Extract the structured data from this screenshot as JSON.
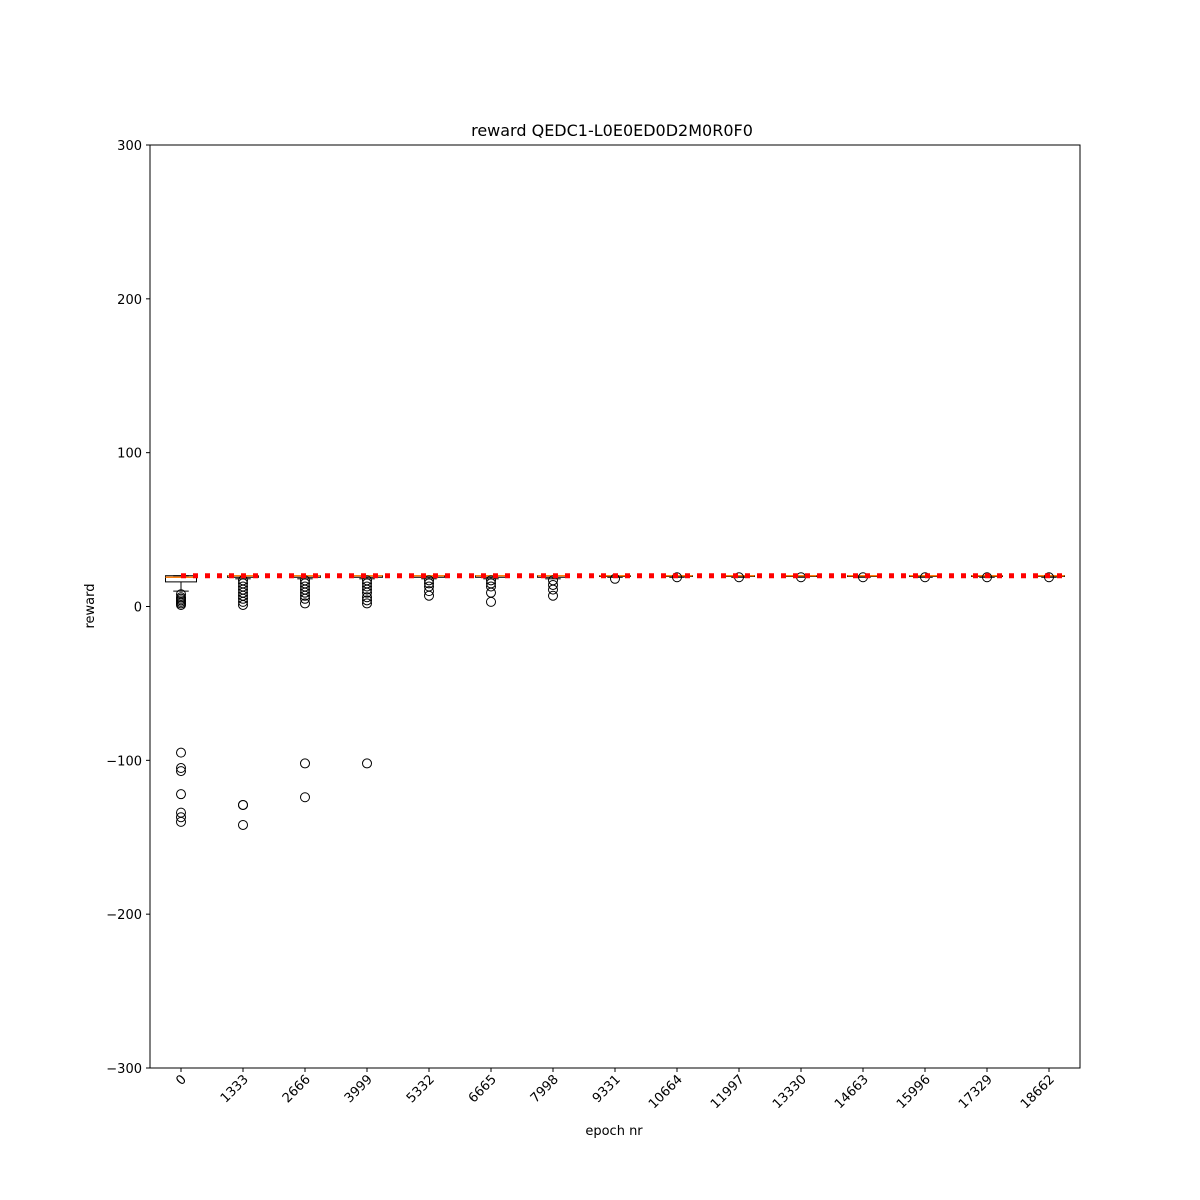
{
  "chart_data": {
    "type": "box",
    "title": "reward QEDC1-L0E0ED0D2M0R0F0",
    "xlabel": "epoch nr",
    "ylabel": "reward",
    "categories": [
      "0",
      "1333",
      "2666",
      "3999",
      "5332",
      "6665",
      "7998",
      "9331",
      "10664",
      "11997",
      "13330",
      "14663",
      "15996",
      "17329",
      "18662"
    ],
    "box_color": "#000000",
    "median_color": "#ff7f0e",
    "boxes": [
      {
        "whislo": 10,
        "q1": 16,
        "med": 19,
        "q3": 20,
        "whishi": 20,
        "fliers": [
          8,
          6,
          5,
          4,
          3,
          2,
          1,
          -95,
          -105,
          -107,
          -122,
          -134,
          -137,
          -140
        ]
      },
      {
        "whislo": 18,
        "q1": 19,
        "med": 20,
        "q3": 20,
        "whishi": 20,
        "fliers": [
          17,
          15,
          13,
          11,
          9,
          7,
          5,
          3,
          1,
          -129,
          -129,
          -142
        ]
      },
      {
        "whislo": 18,
        "q1": 19,
        "med": 20,
        "q3": 20,
        "whishi": 20,
        "fliers": [
          17,
          15,
          13,
          11,
          9,
          7,
          5,
          2,
          -102,
          -124
        ]
      },
      {
        "whislo": 18,
        "q1": 19,
        "med": 20,
        "q3": 20,
        "whishi": 20,
        "fliers": [
          17,
          15,
          13,
          11,
          9,
          6,
          4,
          2,
          -102
        ]
      },
      {
        "whislo": 18,
        "q1": 19,
        "med": 20,
        "q3": 20,
        "whishi": 20,
        "fliers": [
          17,
          15,
          13,
          10,
          7
        ]
      },
      {
        "whislo": 18,
        "q1": 19,
        "med": 20,
        "q3": 20,
        "whishi": 20,
        "fliers": [
          17,
          15,
          13,
          9,
          3
        ]
      },
      {
        "whislo": 18,
        "q1": 19,
        "med": 20,
        "q3": 20,
        "whishi": 20,
        "fliers": [
          17,
          14,
          11,
          7
        ]
      },
      {
        "whislo": 19,
        "q1": 19.5,
        "med": 20,
        "q3": 20,
        "whishi": 20,
        "fliers": [
          18
        ]
      },
      {
        "whislo": 19,
        "q1": 19.5,
        "med": 20,
        "q3": 20,
        "whishi": 20,
        "fliers": [
          19
        ]
      },
      {
        "whislo": 19,
        "q1": 19.5,
        "med": 20,
        "q3": 20,
        "whishi": 20,
        "fliers": [
          19
        ]
      },
      {
        "whislo": 19,
        "q1": 19.5,
        "med": 20,
        "q3": 20,
        "whishi": 20,
        "fliers": [
          19
        ]
      },
      {
        "whislo": 19,
        "q1": 19.5,
        "med": 20,
        "q3": 20,
        "whishi": 20,
        "fliers": [
          19
        ]
      },
      {
        "whislo": 19,
        "q1": 19.5,
        "med": 20,
        "q3": 20,
        "whishi": 20,
        "fliers": [
          19
        ]
      },
      {
        "whislo": 19,
        "q1": 19.5,
        "med": 20,
        "q3": 20,
        "whishi": 20,
        "fliers": [
          19
        ]
      },
      {
        "whislo": 19,
        "q1": 19.5,
        "med": 20,
        "q3": 20,
        "whishi": 20,
        "fliers": [
          19
        ]
      }
    ],
    "reference_line": {
      "value": 20,
      "color": "#ff0000"
    },
    "ylim": [
      -300,
      300
    ],
    "yticks": [
      {
        "value": -300,
        "label": "−300"
      },
      {
        "value": -200,
        "label": "−200"
      },
      {
        "value": -100,
        "label": "−100"
      },
      0,
      100,
      200,
      300
    ]
  }
}
